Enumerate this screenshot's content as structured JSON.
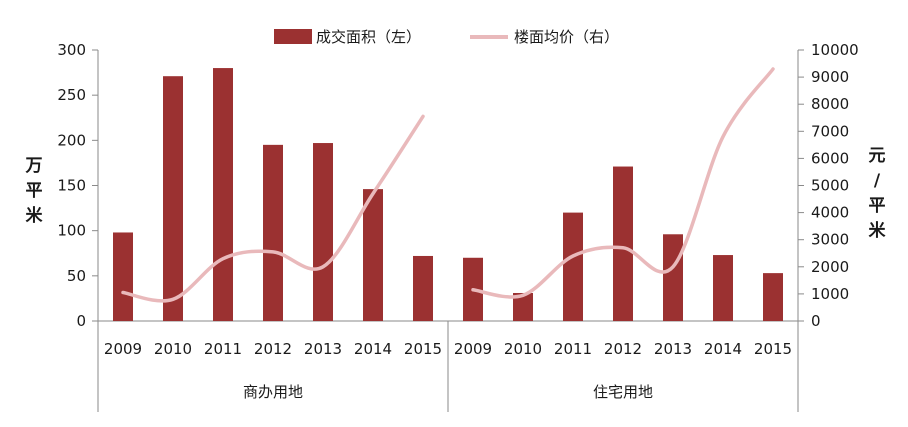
{
  "chart_data": {
    "type": "bar+line",
    "legend": {
      "placement": "top-center",
      "bar_label": "成交面积（左）",
      "line_label": "楼面均价（右）"
    },
    "y_left": {
      "label": "万平米",
      "ylim": [
        0,
        300
      ],
      "ticks": [
        0,
        50,
        100,
        150,
        200,
        250,
        300
      ]
    },
    "y_right": {
      "label": "元/平米",
      "ylim": [
        0,
        10000
      ],
      "ticks": [
        0,
        1000,
        2000,
        3000,
        4000,
        5000,
        6000,
        7000,
        8000,
        9000,
        10000
      ]
    },
    "grid": false,
    "groups": [
      {
        "name": "商办用地",
        "categories": [
          "2009",
          "2010",
          "2011",
          "2012",
          "2013",
          "2014",
          "2015"
        ],
        "area": [
          98,
          271,
          280,
          195,
          197,
          146,
          72
        ],
        "price": [
          1050,
          800,
          2300,
          2550,
          2000,
          4700,
          7550
        ]
      },
      {
        "name": "住宅用地",
        "categories": [
          "2009",
          "2010",
          "2011",
          "2012",
          "2013",
          "2014",
          "2015"
        ],
        "area": [
          70,
          31,
          120,
          171,
          96,
          73,
          53
        ],
        "price": [
          1150,
          950,
          2400,
          2700,
          2000,
          6800,
          9300
        ]
      }
    ],
    "colors": {
      "bar": "#9b3131",
      "line": "#e9b9bb",
      "axis": "#8a8a8a"
    }
  }
}
